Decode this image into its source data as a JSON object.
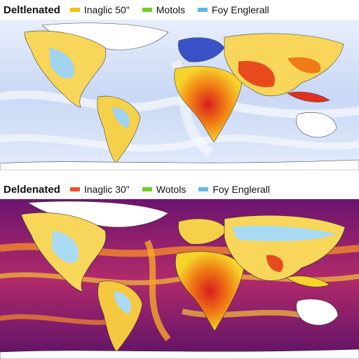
{
  "panels": [
    {
      "legend": {
        "title": "Deltlenated",
        "items": [
          {
            "label": "Inaglic 50\"",
            "color": "#f2c300"
          },
          {
            "label": "Motols",
            "color": "#6ccf2a"
          },
          {
            "label": "Foy Englerall",
            "color": "#5db9f0"
          }
        ]
      },
      "background_color": "#c7d7f3"
    },
    {
      "legend": {
        "title": "Deldenated",
        "items": [
          {
            "label": "Inaglic 30\"",
            "color": "#f05020"
          },
          {
            "label": "Wotols",
            "color": "#6ccf2a"
          },
          {
            "label": "Foy Englerall",
            "color": "#5db9f0"
          }
        ]
      },
      "background_color": "#8a1f7a"
    }
  ]
}
